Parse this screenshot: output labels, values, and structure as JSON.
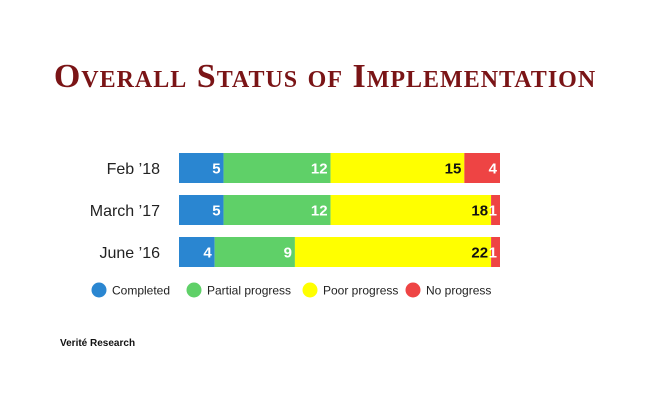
{
  "chart_data": {
    "type": "bar",
    "orientation": "horizontal",
    "stacked": true,
    "title": "Overall Status of Implementation",
    "categories": [
      "Feb ’18",
      "March ’17",
      "June ’16"
    ],
    "series": [
      {
        "name": "Completed",
        "color": "#2a86d1",
        "values": [
          5,
          5,
          4
        ]
      },
      {
        "name": "Partial progress",
        "color": "#5fd068",
        "values": [
          12,
          12,
          9
        ]
      },
      {
        "name": "Poor progress",
        "color": "#ffff00",
        "values": [
          15,
          18,
          22
        ]
      },
      {
        "name": "No progress",
        "color": "#ee4444",
        "values": [
          4,
          1,
          1
        ]
      }
    ],
    "xlim": [
      0,
      36
    ],
    "grid": false,
    "legend_position": "bottom"
  },
  "source": "Verité Research"
}
